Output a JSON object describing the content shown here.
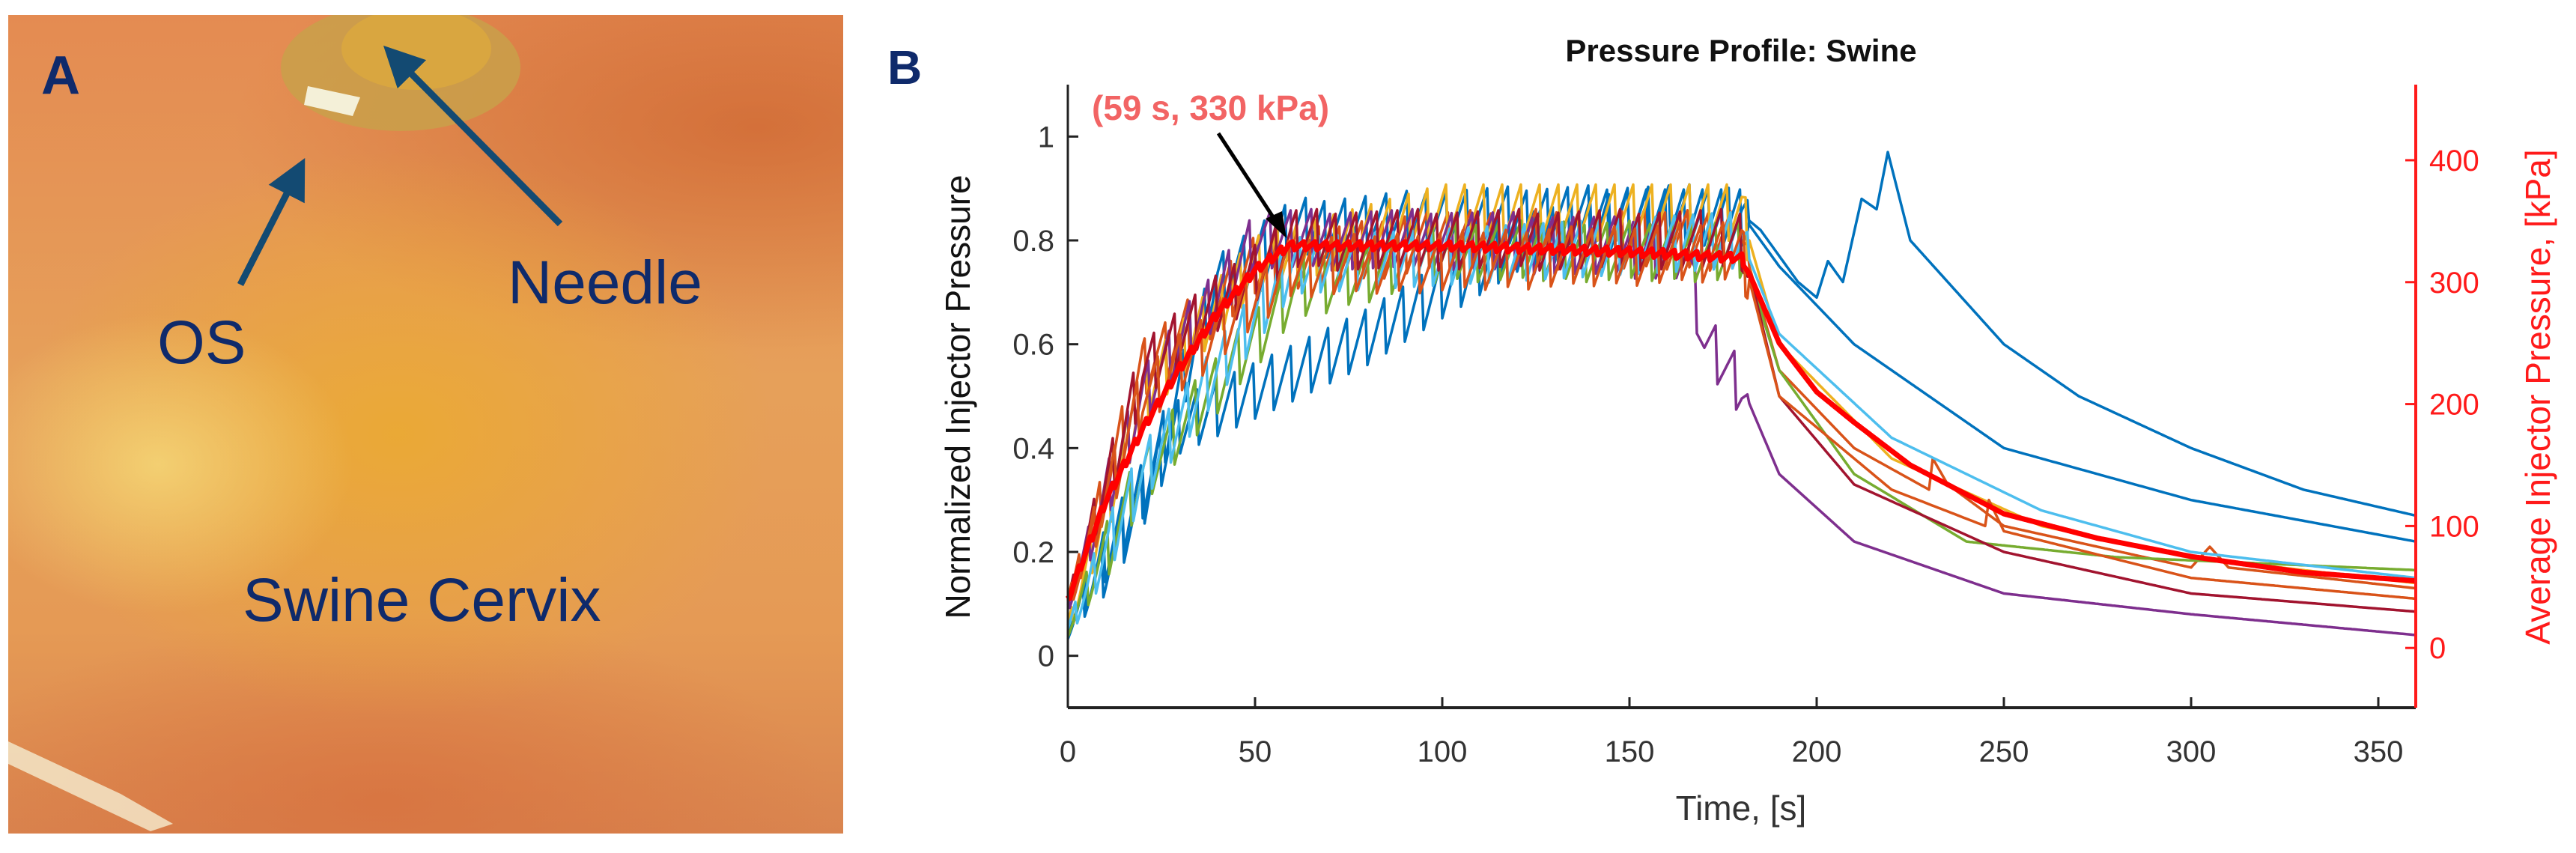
{
  "panel_a": {
    "panel_letter": "A",
    "labels": {
      "needle": "Needle",
      "os": "OS",
      "tissue": "Swine Cervix"
    },
    "label_color": "#0f2a6b",
    "arrow_color": "#134a72"
  },
  "panel_b": {
    "panel_letter": "B"
  },
  "chart_data": {
    "type": "line",
    "title": "Pressure Profile: Swine",
    "xlabel": "Time, [s]",
    "ylabel": "Normalized Injector Pressure",
    "ylabel_right": "Average Injector Pressure, [kPa]",
    "xlim": [
      0,
      360
    ],
    "ylim": [
      -0.1,
      1.1
    ],
    "ylim_right": [
      -49,
      462
    ],
    "xticks": [
      0,
      50,
      100,
      150,
      200,
      250,
      300,
      350
    ],
    "yticks": [
      0,
      0.2,
      0.4,
      0.6,
      0.8,
      1
    ],
    "yticks_right": [
      0,
      100,
      200,
      300,
      400
    ],
    "grid": false,
    "annotation": {
      "text": "(59 s, 330 kPa)",
      "x": 59,
      "y_right": 330,
      "color": "#f26464"
    },
    "oscillation_note": {
      "period_s": 5,
      "amplitude": 0.12,
      "until_s": 182
    },
    "series": [
      {
        "name": "trial 1",
        "color": "#0072BD",
        "axis": "left",
        "points": [
          [
            0,
            0.05
          ],
          [
            10,
            0.2
          ],
          [
            30,
            0.45
          ],
          [
            60,
            0.55
          ],
          [
            80,
            0.62
          ],
          [
            120,
            0.8
          ],
          [
            150,
            0.85
          ],
          [
            180,
            0.85
          ],
          [
            185,
            0.82
          ],
          [
            195,
            0.72
          ],
          [
            200,
            0.69
          ],
          [
            203,
            0.76
          ],
          [
            207,
            0.72
          ],
          [
            212,
            0.88
          ],
          [
            216,
            0.86
          ],
          [
            219,
            0.97
          ],
          [
            225,
            0.8
          ],
          [
            250,
            0.6
          ],
          [
            270,
            0.5
          ],
          [
            300,
            0.4
          ],
          [
            330,
            0.32
          ],
          [
            360,
            0.27
          ]
        ]
      },
      {
        "name": "trial 2",
        "color": "#0072BD",
        "axis": "left",
        "points": [
          [
            0,
            0.05
          ],
          [
            20,
            0.3
          ],
          [
            40,
            0.72
          ],
          [
            60,
            0.82
          ],
          [
            100,
            0.84
          ],
          [
            150,
            0.85
          ],
          [
            180,
            0.85
          ],
          [
            190,
            0.75
          ],
          [
            210,
            0.6
          ],
          [
            250,
            0.4
          ],
          [
            300,
            0.3
          ],
          [
            360,
            0.22
          ]
        ]
      },
      {
        "name": "trial 3",
        "color": "#D95319",
        "axis": "left",
        "points": [
          [
            0,
            0.1
          ],
          [
            20,
            0.55
          ],
          [
            50,
            0.75
          ],
          [
            100,
            0.8
          ],
          [
            180,
            0.8
          ],
          [
            190,
            0.55
          ],
          [
            210,
            0.4
          ],
          [
            230,
            0.32
          ],
          [
            231,
            0.38
          ],
          [
            235,
            0.33
          ],
          [
            250,
            0.25
          ],
          [
            300,
            0.17
          ],
          [
            305,
            0.21
          ],
          [
            310,
            0.17
          ],
          [
            360,
            0.13
          ]
        ]
      },
      {
        "name": "trial 4",
        "color": "#EDB120",
        "axis": "left",
        "points": [
          [
            0,
            0.05
          ],
          [
            20,
            0.5
          ],
          [
            50,
            0.75
          ],
          [
            100,
            0.85
          ],
          [
            180,
            0.85
          ],
          [
            190,
            0.6
          ],
          [
            220,
            0.38
          ],
          [
            260,
            0.25
          ],
          [
            300,
            0.19
          ],
          [
            360,
            0.14
          ]
        ]
      },
      {
        "name": "trial 5",
        "color": "#7E2F8E",
        "axis": "left",
        "points": [
          [
            0,
            0.1
          ],
          [
            20,
            0.5
          ],
          [
            50,
            0.8
          ],
          [
            100,
            0.8
          ],
          [
            165,
            0.78
          ],
          [
            170,
            0.6
          ],
          [
            180,
            0.52
          ],
          [
            190,
            0.35
          ],
          [
            210,
            0.22
          ],
          [
            250,
            0.12
          ],
          [
            300,
            0.08
          ],
          [
            360,
            0.04
          ]
        ]
      },
      {
        "name": "trial 6",
        "color": "#77AC30",
        "axis": "left",
        "points": [
          [
            0,
            0.05
          ],
          [
            20,
            0.35
          ],
          [
            60,
            0.7
          ],
          [
            100,
            0.78
          ],
          [
            180,
            0.78
          ],
          [
            190,
            0.55
          ],
          [
            210,
            0.35
          ],
          [
            240,
            0.22
          ],
          [
            280,
            0.19
          ],
          [
            360,
            0.165
          ]
        ]
      },
      {
        "name": "trial 7",
        "color": "#4DBEEE",
        "axis": "left",
        "points": [
          [
            0,
            0.05
          ],
          [
            20,
            0.35
          ],
          [
            60,
            0.75
          ],
          [
            180,
            0.8
          ],
          [
            190,
            0.62
          ],
          [
            220,
            0.42
          ],
          [
            260,
            0.28
          ],
          [
            300,
            0.2
          ],
          [
            360,
            0.15
          ]
        ]
      },
      {
        "name": "trial 8",
        "color": "#A2142F",
        "axis": "left",
        "points": [
          [
            0,
            0.1
          ],
          [
            20,
            0.55
          ],
          [
            60,
            0.8
          ],
          [
            180,
            0.8
          ],
          [
            190,
            0.5
          ],
          [
            210,
            0.33
          ],
          [
            250,
            0.2
          ],
          [
            300,
            0.12
          ],
          [
            360,
            0.085
          ]
        ]
      },
      {
        "name": "trial 9",
        "color": "#D95319",
        "axis": "left",
        "points": [
          [
            0,
            0.1
          ],
          [
            20,
            0.5
          ],
          [
            60,
            0.75
          ],
          [
            180,
            0.78
          ],
          [
            190,
            0.5
          ],
          [
            220,
            0.32
          ],
          [
            245,
            0.25
          ],
          [
            246,
            0.3
          ],
          [
            250,
            0.24
          ],
          [
            300,
            0.15
          ],
          [
            360,
            0.11
          ]
        ]
      },
      {
        "name": "average",
        "color": "#FF0000",
        "axis": "right",
        "points": [
          [
            0,
            40
          ],
          [
            10,
            120
          ],
          [
            20,
            180
          ],
          [
            30,
            230
          ],
          [
            40,
            275
          ],
          [
            50,
            310
          ],
          [
            59,
            330
          ],
          [
            80,
            330
          ],
          [
            100,
            330
          ],
          [
            150,
            325
          ],
          [
            180,
            320
          ],
          [
            183,
            300
          ],
          [
            190,
            250
          ],
          [
            200,
            210
          ],
          [
            210,
            185
          ],
          [
            225,
            150
          ],
          [
            250,
            110
          ],
          [
            275,
            90
          ],
          [
            300,
            75
          ],
          [
            330,
            62
          ],
          [
            360,
            55
          ]
        ]
      }
    ]
  }
}
